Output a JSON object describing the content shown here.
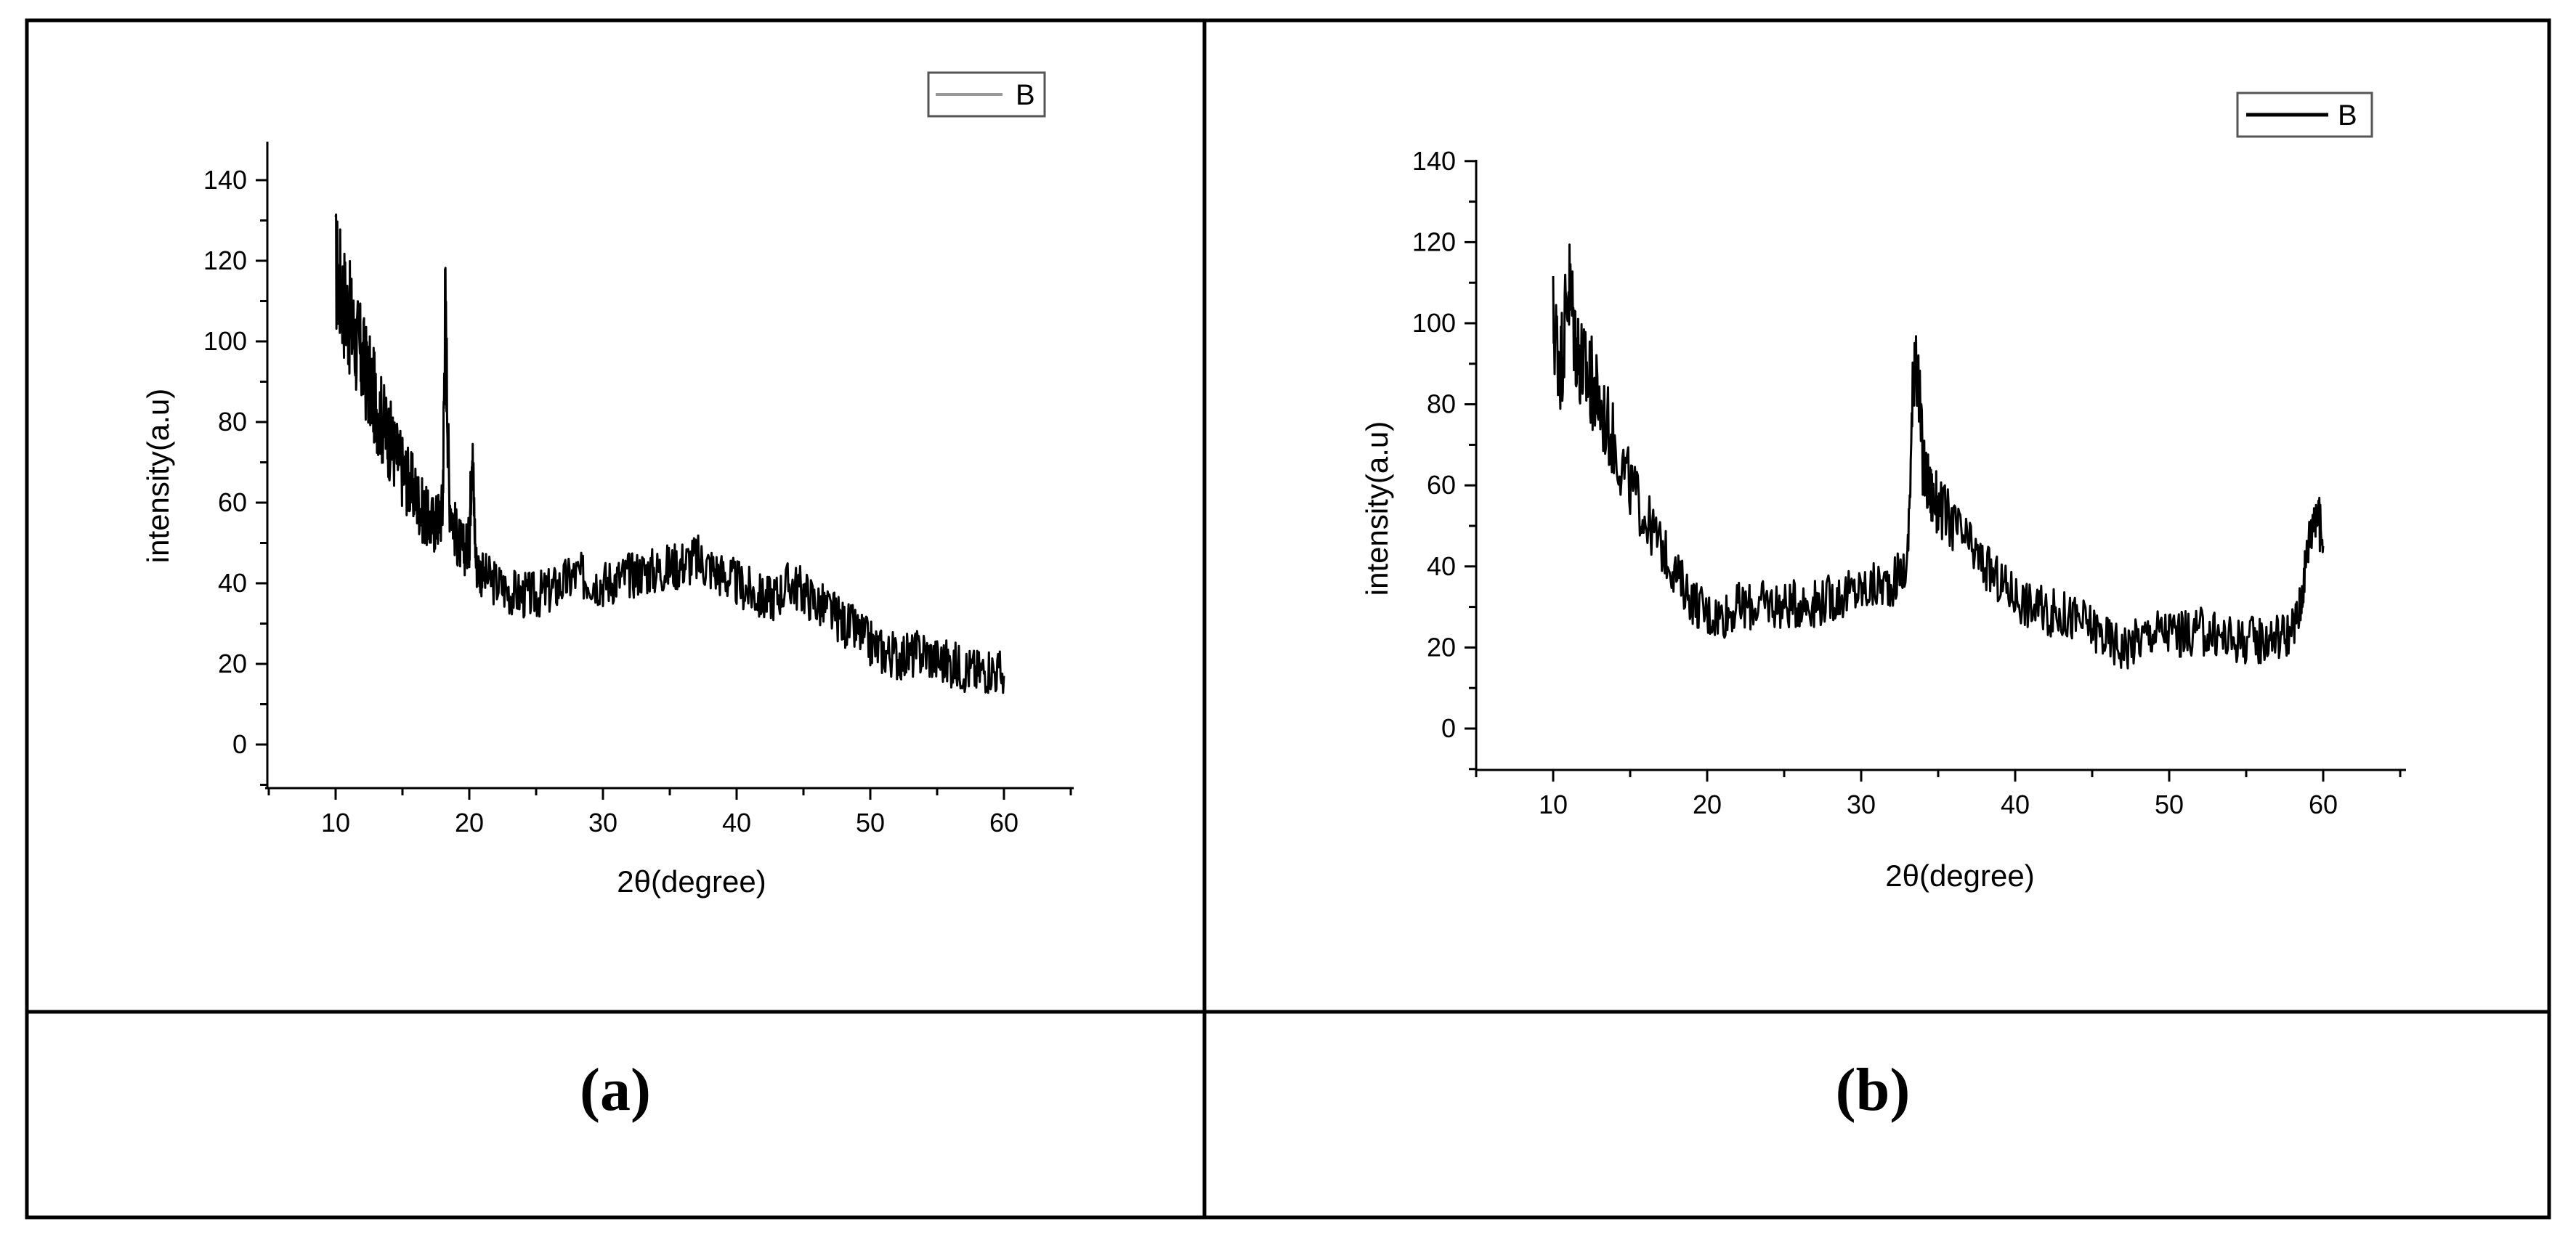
{
  "figure": {
    "captions": [
      "(a)",
      "(b)"
    ]
  },
  "chart_data": [
    {
      "type": "line",
      "panel": "(a)",
      "xlabel": "2θ(degree)",
      "ylabel": "intensity(a.u)",
      "xlim": [
        5,
        65
      ],
      "ylim": [
        -10,
        150
      ],
      "xticks": [
        10,
        20,
        30,
        40,
        50,
        60
      ],
      "yticks": [
        0,
        20,
        40,
        60,
        80,
        100,
        120,
        140
      ],
      "legend": "top-right",
      "grid": false,
      "series": [
        {
          "name": "B",
          "color": "#000000",
          "x": [
            10,
            10.5,
            11,
            11.5,
            12,
            12.5,
            13,
            13.5,
            14,
            14.5,
            15,
            15.5,
            16,
            16.5,
            17,
            17.5,
            18,
            18.2,
            18.5,
            19,
            19.5,
            20,
            20.2,
            20.5,
            21,
            22,
            23,
            24,
            25,
            26,
            27,
            28,
            29,
            30,
            31,
            32,
            33,
            34,
            35,
            36,
            37,
            38,
            39,
            40,
            41,
            42,
            43,
            44,
            45,
            46,
            47,
            48,
            49,
            50,
            51,
            52,
            53,
            54,
            55,
            56,
            57,
            58,
            59,
            60
          ],
          "y": [
            118,
            112,
            106,
            100,
            95,
            90,
            85,
            80,
            76,
            72,
            68,
            65,
            62,
            58,
            55,
            55,
            58,
            110,
            62,
            52,
            48,
            50,
            75,
            45,
            42,
            40,
            38,
            37,
            37,
            38,
            40,
            42,
            41,
            40,
            41,
            42,
            43,
            43,
            44,
            45,
            46,
            44,
            42,
            40,
            38,
            36,
            37,
            40,
            38,
            35,
            33,
            30,
            28,
            25,
            23,
            22,
            22,
            23,
            21,
            20,
            19,
            18,
            19,
            17
          ]
        }
      ]
    },
    {
      "type": "line",
      "panel": "(b)",
      "xlabel": "2θ(degree)",
      "ylabel": "intensity(a.u)",
      "xlim": [
        5,
        65
      ],
      "ylim": [
        -10,
        140
      ],
      "xticks": [
        10,
        20,
        30,
        40,
        50,
        60
      ],
      "yticks": [
        0,
        20,
        40,
        60,
        80,
        100,
        120,
        140
      ],
      "legend": "top-right",
      "grid": false,
      "series": [
        {
          "name": "B",
          "color": "#000000",
          "x": [
            10,
            10.5,
            11,
            11.5,
            12,
            12.5,
            13,
            14,
            15,
            16,
            17,
            18,
            19,
            20,
            21,
            22,
            23,
            24,
            25,
            26,
            27,
            28,
            29,
            30,
            31,
            32,
            33,
            33.5,
            34,
            34.5,
            35,
            36,
            37,
            38,
            39,
            40,
            41,
            42,
            43,
            44,
            45,
            46,
            47,
            48,
            49,
            50,
            51,
            52,
            53,
            54,
            55,
            56,
            57,
            58,
            58.5,
            59,
            59.5,
            60
          ],
          "y": [
            100,
            90,
            110,
            95,
            88,
            85,
            80,
            70,
            60,
            52,
            45,
            38,
            32,
            28,
            28,
            30,
            30,
            31,
            30,
            31,
            31,
            32,
            33,
            34,
            35,
            36,
            40,
            100,
            65,
            58,
            55,
            50,
            45,
            40,
            36,
            33,
            30,
            29,
            28,
            27,
            25,
            22,
            20,
            22,
            24,
            24,
            23,
            24,
            23,
            22,
            22,
            22,
            23,
            24,
            30,
            45,
            55,
            45
          ]
        }
      ]
    }
  ]
}
